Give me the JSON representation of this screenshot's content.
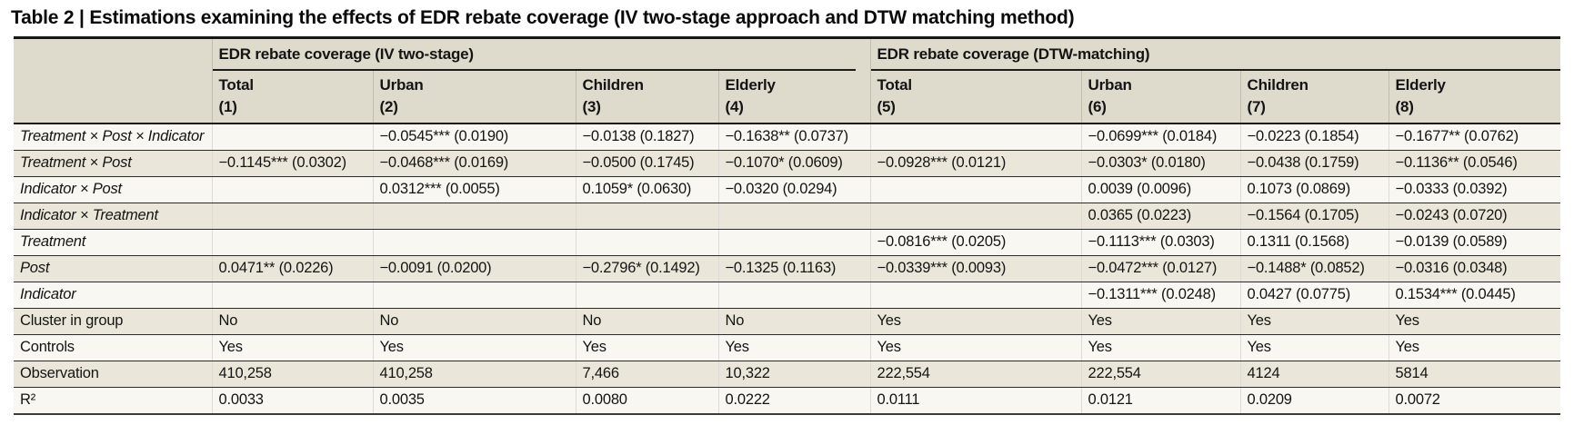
{
  "title": "Table 2 | Estimations examining the effects of EDR rebate coverage (IV two-stage approach and DTW matching method)",
  "colors": {
    "header_background": "#dedacc",
    "row_light": "#f8f7f1",
    "row_shade": "#eae7da",
    "rule_dark": "#1c1c1c",
    "text": "#141414"
  },
  "table": {
    "groups": [
      {
        "label": "EDR rebate coverage (IV two-stage)"
      },
      {
        "label": "EDR rebate coverage (DTW-matching)"
      }
    ],
    "columns": [
      {
        "name": "Total",
        "number": "(1)"
      },
      {
        "name": "Urban",
        "number": "(2)"
      },
      {
        "name": "Children",
        "number": "(3)"
      },
      {
        "name": "Elderly",
        "number": "(4)"
      },
      {
        "name": "Total",
        "number": "(5)"
      },
      {
        "name": "Urban",
        "number": "(6)"
      },
      {
        "name": "Children",
        "number": "(7)"
      },
      {
        "name": "Elderly",
        "number": "(8)"
      }
    ],
    "rows": [
      {
        "label": "Treatment × Post × Indicator",
        "italic": true,
        "cells": [
          "",
          "−0.0545*** (0.0190)",
          "−0.0138 (0.1827)",
          "−0.1638** (0.0737)",
          "",
          "−0.0699*** (0.0184)",
          "−0.0223 (0.1854)",
          "−0.1677** (0.0762)"
        ]
      },
      {
        "label": "Treatment × Post",
        "italic": true,
        "cells": [
          "−0.1145*** (0.0302)",
          "−0.0468*** (0.0169)",
          "−0.0500 (0.1745)",
          "−0.1070* (0.0609)",
          "−0.0928*** (0.0121)",
          "−0.0303* (0.0180)",
          "−0.0438 (0.1759)",
          "−0.1136** (0.0546)"
        ]
      },
      {
        "label": "Indicator × Post",
        "italic": true,
        "cells": [
          "",
          "0.0312*** (0.0055)",
          "0.1059* (0.0630)",
          "−0.0320 (0.0294)",
          "",
          "0.0039 (0.0096)",
          "0.1073 (0.0869)",
          "−0.0333 (0.0392)"
        ]
      },
      {
        "label": "Indicator × Treatment",
        "italic": true,
        "cells": [
          "",
          "",
          "",
          "",
          "",
          "0.0365 (0.0223)",
          "−0.1564 (0.1705)",
          "−0.0243 (0.0720)"
        ]
      },
      {
        "label": "Treatment",
        "italic": true,
        "cells": [
          "",
          "",
          "",
          "",
          "−0.0816*** (0.0205)",
          "−0.1113*** (0.0303)",
          "0.1311 (0.1568)",
          "−0.0139 (0.0589)"
        ]
      },
      {
        "label": "Post",
        "italic": true,
        "cells": [
          "0.0471** (0.0226)",
          "−0.0091 (0.0200)",
          "−0.2796* (0.1492)",
          "−0.1325 (0.1163)",
          "−0.0339*** (0.0093)",
          "−0.0472*** (0.0127)",
          "−0.1488* (0.0852)",
          "−0.0316 (0.0348)"
        ]
      },
      {
        "label": "Indicator",
        "italic": true,
        "cells": [
          "",
          "",
          "",
          "",
          "",
          "−0.1311*** (0.0248)",
          "0.0427 (0.0775)",
          "0.1534*** (0.0445)"
        ]
      },
      {
        "label": "Cluster in group",
        "italic": false,
        "cells": [
          "No",
          "No",
          "No",
          "No",
          "Yes",
          "Yes",
          "Yes",
          "Yes"
        ]
      },
      {
        "label": "Controls",
        "italic": false,
        "cells": [
          "Yes",
          "Yes",
          "Yes",
          "Yes",
          "Yes",
          "Yes",
          "Yes",
          "Yes"
        ]
      },
      {
        "label": "Observation",
        "italic": false,
        "cells": [
          "410,258",
          "410,258",
          "7,466",
          "10,322",
          "222,554",
          "222,554",
          "4124",
          "5814"
        ]
      },
      {
        "label": "R²",
        "italic": false,
        "cells": [
          "0.0033",
          "0.0035",
          "0.0080",
          "0.0222",
          "0.0111",
          "0.0121",
          "0.0209",
          "0.0072"
        ]
      }
    ]
  }
}
